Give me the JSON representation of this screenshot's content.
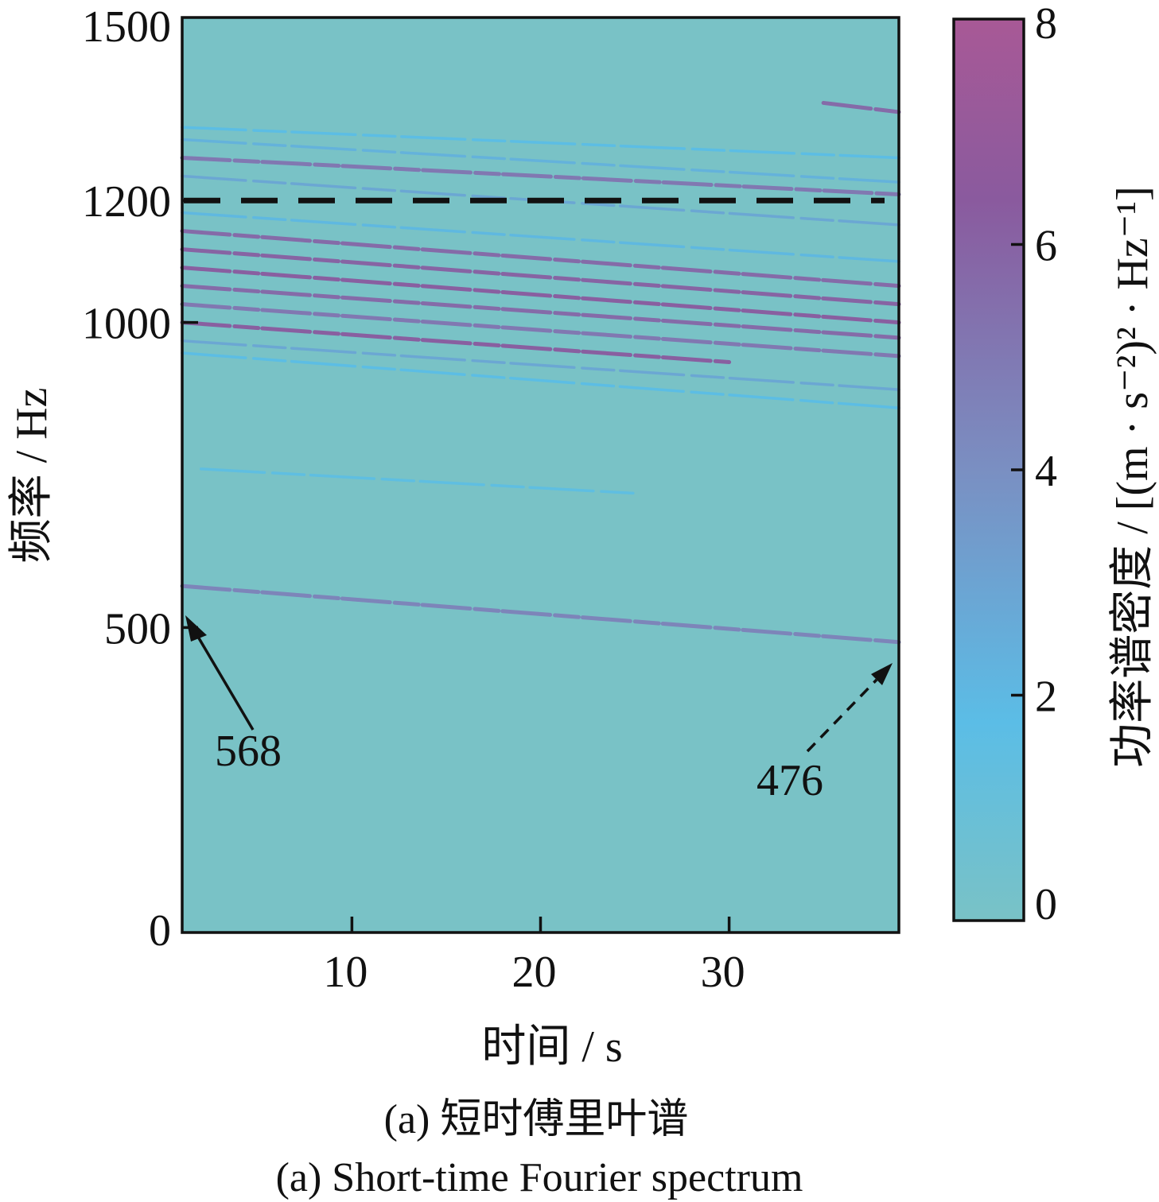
{
  "chart_data": {
    "type": "heatmap",
    "title": "",
    "xlabel": "时间 / s",
    "ylabel": "频率 / Hz",
    "xlim": [
      1,
      39
    ],
    "ylim": [
      0,
      1500
    ],
    "x_ticks": [
      10,
      20,
      30
    ],
    "y_ticks": [
      0,
      500,
      1000,
      1200,
      1500
    ],
    "grid": false,
    "colorbar": {
      "label": "功率谱密度 / [(m · s⁻²)² · Hz⁻¹]",
      "min": 0,
      "max": 8,
      "ticks": [
        0,
        2,
        4,
        6,
        8
      ],
      "colors": [
        "#79c2c6",
        "#5bbde6",
        "#7a8fc2",
        "#8a5a9e",
        "#a85996"
      ]
    },
    "reference_line": {
      "y": 1200,
      "style": "dashed",
      "color": "#111111"
    },
    "tracks": [
      {
        "x0": 1,
        "y0": 568,
        "x1": 39,
        "y1": 476,
        "level": 4.5
      },
      {
        "x0": 1,
        "y0": 1270,
        "x1": 39,
        "y1": 1210,
        "level": 5.0
      },
      {
        "x0": 1,
        "y0": 1240,
        "x1": 39,
        "y1": 1160,
        "level": 3.0
      },
      {
        "x0": 1,
        "y0": 1300,
        "x1": 39,
        "y1": 1230,
        "level": 2.5
      },
      {
        "x0": 1,
        "y0": 1320,
        "x1": 39,
        "y1": 1270,
        "level": 2.0
      },
      {
        "x0": 1,
        "y0": 1180,
        "x1": 39,
        "y1": 1100,
        "level": 2.2
      },
      {
        "x0": 1,
        "y0": 1150,
        "x1": 39,
        "y1": 1060,
        "level": 5.5
      },
      {
        "x0": 1,
        "y0": 1120,
        "x1": 39,
        "y1": 1030,
        "level": 5.8
      },
      {
        "x0": 1,
        "y0": 1090,
        "x1": 39,
        "y1": 1000,
        "level": 6.0
      },
      {
        "x0": 1,
        "y0": 1060,
        "x1": 39,
        "y1": 975,
        "level": 5.5
      },
      {
        "x0": 1,
        "y0": 1030,
        "x1": 39,
        "y1": 945,
        "level": 5.0
      },
      {
        "x0": 1,
        "y0": 1000,
        "x1": 30,
        "y1": 935,
        "level": 6.0
      },
      {
        "x0": 1,
        "y0": 970,
        "x1": 39,
        "y1": 890,
        "level": 3.0
      },
      {
        "x0": 1,
        "y0": 950,
        "x1": 39,
        "y1": 860,
        "level": 2.0
      },
      {
        "x0": 35,
        "y0": 1360,
        "x1": 39,
        "y1": 1345,
        "level": 5.5
      },
      {
        "x0": 2,
        "y0": 760,
        "x1": 25,
        "y1": 720,
        "level": 1.8
      }
    ],
    "annotations": [
      {
        "text": "568",
        "x": 1,
        "y": 510,
        "style": "solid"
      },
      {
        "text": "476",
        "x": 39,
        "y": 440,
        "style": "dashed"
      }
    ]
  },
  "captions": {
    "zh": "(a)  短时傅里叶谱",
    "en": "(a)  Short-time Fourier spectrum"
  }
}
